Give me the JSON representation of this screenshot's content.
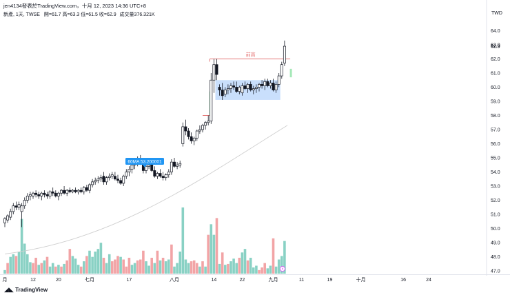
{
  "header": {
    "publisher": "jen4134發表於TradingView.com，十月 12, 2023 14:36 UTC+8",
    "symbol_line": "新產, 1天, TWSE",
    "ohlcv": {
      "open": "開=61.7",
      "high": "高=63.3",
      "low": "低=61.5",
      "close": "收=62.9",
      "volume": "成交量376.321K"
    }
  },
  "currency": "TWD",
  "branding": {
    "logo_text": "TradingView"
  },
  "colors": {
    "up_candle": "#ffffff",
    "down_candle": "#131722",
    "candle_outline": "#131722",
    "vol_up": "#89d1c4",
    "vol_down": "#f2a4a6",
    "ma_line": "#cfcfcf",
    "resistance": "#e57373",
    "consolidation_box": "#bfd9fb",
    "ma_label_bg": "#2196f3",
    "green_mark": "#a5e8b8"
  },
  "chart_data": {
    "type": "candlestick",
    "y_axis": {
      "ticks": [
        "64.0",
        "63.0",
        "62.0",
        "61.0",
        "60.0",
        "59.0",
        "58.0",
        "57.0",
        "56.0",
        "55.0",
        "54.0",
        "53.0",
        "52.0",
        "51.0",
        "50.0",
        "49.0",
        "48.0",
        "47.0"
      ],
      "last_price_label": "62.9",
      "range": [
        47,
        64
      ]
    },
    "x_axis": {
      "ticks": [
        {
          "i": 0,
          "label": "月"
        },
        {
          "i": 10,
          "label": "12"
        },
        {
          "i": 19,
          "label": "20"
        },
        {
          "i": 30,
          "label": "七月"
        },
        {
          "i": 44,
          "label": "17"
        },
        {
          "i": 60,
          "label": "八月"
        },
        {
          "i": 74,
          "label": "14"
        },
        {
          "i": 84,
          "label": "22"
        },
        {
          "i": 95,
          "label": "九月"
        },
        {
          "i": 105,
          "label": "11"
        },
        {
          "i": 115,
          "label": "19"
        },
        {
          "i": 126,
          "label": "十月"
        },
        {
          "i": 141,
          "label": "16"
        },
        {
          "i": 150,
          "label": "24"
        }
      ]
    },
    "candles": [
      [
        50.4,
        50.8,
        50.1,
        50.7
      ],
      [
        50.6,
        51.0,
        50.4,
        50.9
      ],
      [
        50.8,
        51.4,
        50.6,
        51.2
      ],
      [
        51.2,
        51.8,
        51.0,
        51.6
      ],
      [
        51.6,
        51.9,
        51.3,
        51.5
      ],
      [
        51.5,
        51.9,
        51.3,
        51.7
      ],
      [
        51.2,
        51.8,
        50.1,
        51.6
      ],
      [
        51.6,
        52.2,
        51.4,
        52.0
      ],
      [
        52.0,
        52.5,
        51.8,
        52.3
      ],
      [
        52.3,
        52.6,
        52.0,
        52.4
      ],
      [
        52.3,
        52.6,
        52.1,
        52.5
      ],
      [
        52.5,
        52.7,
        52.2,
        52.4
      ],
      [
        52.4,
        52.6,
        52.1,
        52.3
      ],
      [
        52.3,
        52.6,
        52.0,
        52.5
      ],
      [
        52.5,
        52.7,
        52.2,
        52.4
      ],
      [
        52.4,
        52.6,
        52.1,
        52.3
      ],
      [
        52.3,
        52.7,
        52.1,
        52.6
      ],
      [
        52.6,
        52.9,
        52.3,
        52.5
      ],
      [
        52.5,
        52.7,
        52.2,
        52.3
      ],
      [
        52.3,
        52.6,
        52.0,
        52.5
      ],
      [
        52.5,
        52.8,
        52.3,
        52.7
      ],
      [
        52.7,
        53.0,
        52.4,
        52.5
      ],
      [
        52.5,
        52.8,
        52.3,
        52.7
      ],
      [
        52.7,
        52.9,
        52.5,
        52.6
      ],
      [
        52.6,
        52.8,
        52.5,
        52.7
      ],
      [
        52.7,
        52.9,
        52.5,
        52.6
      ],
      [
        52.6,
        52.8,
        52.4,
        52.7
      ],
      [
        52.7,
        52.9,
        52.5,
        52.6
      ],
      [
        52.6,
        53.0,
        52.4,
        52.9
      ],
      [
        52.9,
        53.1,
        52.6,
        52.7
      ],
      [
        52.7,
        53.2,
        52.5,
        53.1
      ],
      [
        53.1,
        53.5,
        52.9,
        53.3
      ],
      [
        53.3,
        53.6,
        53.1,
        53.4
      ],
      [
        53.4,
        53.7,
        53.2,
        53.5
      ],
      [
        53.5,
        53.8,
        53.3,
        53.6
      ],
      [
        53.7,
        54.0,
        53.1,
        53.3
      ],
      [
        53.3,
        53.7,
        53.1,
        53.6
      ],
      [
        53.6,
        53.9,
        53.4,
        53.7
      ],
      [
        53.7,
        54.0,
        53.5,
        53.8
      ],
      [
        53.7,
        54.0,
        53.4,
        53.5
      ],
      [
        53.5,
        53.8,
        53.2,
        53.4
      ],
      [
        53.4,
        53.6,
        53.1,
        53.2
      ],
      [
        53.2,
        53.8,
        53.0,
        53.7
      ],
      [
        53.7,
        54.2,
        53.5,
        54.0
      ],
      [
        54.0,
        54.4,
        53.7,
        54.2
      ],
      [
        54.2,
        54.6,
        53.9,
        54.5
      ],
      [
        54.5,
        54.9,
        54.2,
        54.7
      ],
      [
        54.7,
        55.1,
        54.4,
        54.9
      ],
      [
        54.9,
        55.2,
        54.5,
        54.6
      ],
      [
        54.6,
        54.9,
        53.9,
        54.1
      ],
      [
        54.1,
        54.6,
        53.9,
        54.4
      ],
      [
        54.4,
        54.7,
        54.2,
        54.5
      ],
      [
        54.5,
        54.7,
        54.0,
        54.1
      ],
      [
        54.1,
        54.4,
        53.6,
        53.7
      ],
      [
        53.7,
        54.0,
        53.5,
        53.9
      ],
      [
        53.9,
        54.2,
        53.6,
        53.7
      ],
      [
        53.7,
        54.0,
        53.4,
        53.6
      ],
      [
        53.6,
        53.9,
        53.4,
        53.8
      ],
      [
        53.8,
        54.2,
        53.6,
        54.0
      ],
      [
        54.0,
        54.9,
        53.8,
        54.7
      ],
      [
        54.7,
        55.0,
        54.3,
        54.4
      ],
      [
        54.4,
        54.7,
        54.2,
        54.5
      ],
      [
        54.5,
        54.8,
        54.3,
        54.6
      ],
      [
        56.0,
        57.5,
        55.8,
        57.2
      ],
      [
        57.2,
        57.7,
        56.6,
        56.9
      ],
      [
        56.9,
        57.1,
        56.3,
        56.5
      ],
      [
        56.5,
        56.8,
        56.0,
        56.2
      ],
      [
        56.2,
        56.5,
        55.9,
        56.4
      ],
      [
        56.4,
        57.0,
        56.2,
        56.9
      ],
      [
        56.9,
        57.3,
        56.7,
        57.0
      ],
      [
        57.0,
        57.4,
        56.8,
        57.3
      ],
      [
        57.3,
        57.6,
        57.0,
        57.5
      ],
      [
        57.5,
        58.0,
        57.3,
        57.6
      ],
      [
        57.6,
        61.0,
        57.4,
        60.5
      ],
      [
        60.5,
        62.0,
        59.6,
        61.6
      ],
      [
        61.6,
        62.0,
        60.5,
        60.9
      ],
      [
        60.0,
        60.2,
        59.4,
        59.8
      ],
      [
        59.8,
        60.3,
        59.1,
        59.4
      ],
      [
        59.5,
        60.0,
        59.3,
        59.8
      ],
      [
        59.8,
        60.2,
        59.5,
        59.9
      ],
      [
        59.9,
        60.3,
        59.6,
        60.1
      ],
      [
        60.1,
        60.4,
        59.8,
        60.0
      ],
      [
        60.0,
        60.4,
        59.6,
        59.7
      ],
      [
        59.7,
        60.1,
        59.5,
        60.0
      ],
      [
        59.6,
        60.3,
        59.4,
        60.1
      ],
      [
        60.1,
        60.4,
        59.8,
        59.9
      ],
      [
        59.9,
        60.3,
        59.6,
        60.2
      ],
      [
        60.2,
        60.4,
        59.7,
        59.8
      ],
      [
        59.8,
        60.1,
        59.5,
        59.9
      ],
      [
        59.9,
        60.2,
        59.6,
        60.0
      ],
      [
        60.0,
        60.3,
        59.7,
        60.2
      ],
      [
        60.2,
        60.5,
        59.9,
        60.1
      ],
      [
        60.1,
        60.6,
        59.8,
        60.4
      ],
      [
        60.4,
        60.6,
        60.0,
        60.1
      ],
      [
        60.1,
        60.5,
        59.9,
        60.3
      ],
      [
        60.3,
        60.6,
        59.7,
        59.8
      ],
      [
        59.8,
        60.4,
        59.6,
        60.2
      ],
      [
        60.2,
        61.0,
        60.0,
        60.8
      ],
      [
        60.8,
        61.8,
        60.6,
        61.6
      ],
      [
        61.7,
        63.3,
        61.5,
        62.9
      ]
    ],
    "volumes": [
      [
        4,
        "up"
      ],
      [
        12,
        "down"
      ],
      [
        19,
        "up"
      ],
      [
        22,
        "up"
      ],
      [
        20,
        "down"
      ],
      [
        25,
        "up"
      ],
      [
        62,
        "up"
      ],
      [
        34,
        "up"
      ],
      [
        22,
        "up"
      ],
      [
        13,
        "up"
      ],
      [
        12,
        "down"
      ],
      [
        18,
        "down"
      ],
      [
        10,
        "up"
      ],
      [
        12,
        "down"
      ],
      [
        15,
        "up"
      ],
      [
        19,
        "down"
      ],
      [
        8,
        "up"
      ],
      [
        12,
        "up"
      ],
      [
        8,
        "down"
      ],
      [
        10,
        "up"
      ],
      [
        8,
        "down"
      ],
      [
        11,
        "up"
      ],
      [
        15,
        "down"
      ],
      [
        28,
        "down"
      ],
      [
        20,
        "up"
      ],
      [
        17,
        "up"
      ],
      [
        10,
        "up"
      ],
      [
        8,
        "down"
      ],
      [
        14,
        "up"
      ],
      [
        20,
        "down"
      ],
      [
        26,
        "up"
      ],
      [
        19,
        "up"
      ],
      [
        25,
        "up"
      ],
      [
        28,
        "up"
      ],
      [
        35,
        "up"
      ],
      [
        18,
        "down"
      ],
      [
        12,
        "up"
      ],
      [
        22,
        "up"
      ],
      [
        14,
        "down"
      ],
      [
        16,
        "down"
      ],
      [
        20,
        "down"
      ],
      [
        19,
        "up"
      ],
      [
        16,
        "down"
      ],
      [
        8,
        "down"
      ],
      [
        18,
        "down"
      ],
      [
        10,
        "up"
      ],
      [
        12,
        "up"
      ],
      [
        15,
        "down"
      ],
      [
        16,
        "down"
      ],
      [
        26,
        "down"
      ],
      [
        14,
        "up"
      ],
      [
        9,
        "up"
      ],
      [
        18,
        "down"
      ],
      [
        12,
        "up"
      ],
      [
        26,
        "down"
      ],
      [
        15,
        "up"
      ],
      [
        18,
        "down"
      ],
      [
        14,
        "up"
      ],
      [
        16,
        "up"
      ],
      [
        33,
        "down"
      ],
      [
        8,
        "up"
      ],
      [
        12,
        "up"
      ],
      [
        25,
        "up"
      ],
      [
        75,
        "up"
      ],
      [
        16,
        "up"
      ],
      [
        12,
        "up"
      ],
      [
        14,
        "down"
      ],
      [
        15,
        "down"
      ],
      [
        12,
        "down"
      ],
      [
        8,
        "up"
      ],
      [
        14,
        "down"
      ],
      [
        8,
        "up"
      ],
      [
        44,
        "down"
      ],
      [
        56,
        "up"
      ],
      [
        44,
        "up"
      ],
      [
        63,
        "down"
      ],
      [
        11,
        "up"
      ],
      [
        24,
        "down"
      ],
      [
        10,
        "up"
      ],
      [
        11,
        "down"
      ],
      [
        14,
        "up"
      ],
      [
        17,
        "up"
      ],
      [
        12,
        "up"
      ],
      [
        18,
        "down"
      ],
      [
        24,
        "up"
      ],
      [
        28,
        "up"
      ],
      [
        15,
        "down"
      ],
      [
        18,
        "up"
      ],
      [
        7,
        "up"
      ],
      [
        9,
        "up"
      ],
      [
        4,
        "down"
      ],
      [
        7,
        "down"
      ],
      [
        12,
        "down"
      ],
      [
        6,
        "up"
      ],
      [
        9,
        "up"
      ],
      [
        40,
        "down"
      ],
      [
        8,
        "up"
      ],
      [
        16,
        "up"
      ],
      [
        20,
        "up"
      ],
      [
        37,
        "up"
      ]
    ],
    "volume_range": [
      0,
      78
    ],
    "ma": {
      "label": "60MA 53.200001",
      "start": [
        0,
        48.2
      ],
      "end": [
        100,
        57.3
      ]
    },
    "resistance": {
      "label": "前高",
      "level": 62.0,
      "from": 73,
      "to": 101
    },
    "consolidation": {
      "from": 75,
      "to": 97,
      "top": 60.5,
      "bottom": 59.1
    }
  }
}
